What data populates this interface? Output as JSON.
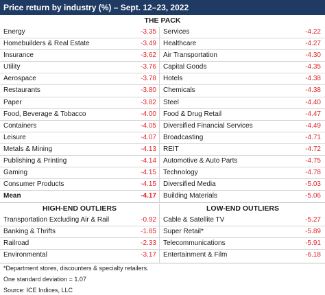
{
  "title": "Price return by industry (%) – Sept. 12–23, 2022",
  "pack": {
    "heading": "THE PACK",
    "left": [
      {
        "name": "Energy",
        "value": "-3.35"
      },
      {
        "name": "Homebuilders & Real Estate",
        "value": "-3.49"
      },
      {
        "name": "Insurance",
        "value": "-3.62"
      },
      {
        "name": "Utility",
        "value": "-3.76"
      },
      {
        "name": "Aerospace",
        "value": "-3.78"
      },
      {
        "name": "Restaurants",
        "value": "-3.80"
      },
      {
        "name": "Paper",
        "value": "-3.82"
      },
      {
        "name": "Food, Beverage & Tobacco",
        "value": "-4.00"
      },
      {
        "name": "Containers",
        "value": "-4.05"
      },
      {
        "name": "Leisure",
        "value": "-4.07"
      },
      {
        "name": "Metals & Mining",
        "value": "-4.13"
      },
      {
        "name": "Publishing & Printing",
        "value": "-4.14"
      },
      {
        "name": "Gaming",
        "value": "-4.15"
      },
      {
        "name": "Consumer Products",
        "value": "-4.15"
      },
      {
        "name": "Mean",
        "value": "-4.17"
      }
    ],
    "right": [
      {
        "name": "Services",
        "value": "-4.22"
      },
      {
        "name": "Healthcare",
        "value": "-4.27"
      },
      {
        "name": "Air Transportation",
        "value": "-4.30"
      },
      {
        "name": "Capital Goods",
        "value": "-4.35"
      },
      {
        "name": "Hotels",
        "value": "-4.38"
      },
      {
        "name": "Chemicals",
        "value": "-4.38"
      },
      {
        "name": "Steel",
        "value": "-4.40"
      },
      {
        "name": "Food & Drug Retail",
        "value": "-4.47"
      },
      {
        "name": "Diversified Financial Services",
        "value": "-4.49"
      },
      {
        "name": "Broadcasting",
        "value": "-4.71"
      },
      {
        "name": "REIT",
        "value": "-4.72"
      },
      {
        "name": "Automotive & Auto Parts",
        "value": "-4.75"
      },
      {
        "name": "Technology",
        "value": "-4.78"
      },
      {
        "name": "Diversified Media",
        "value": "-5.03"
      },
      {
        "name": "Building Materials",
        "value": "-5.06"
      }
    ]
  },
  "high_end": {
    "heading": "HIGH-END OUTLIERS",
    "items": [
      {
        "name": "Transportation Excluding Air & Rail",
        "value": "-0.92"
      },
      {
        "name": "Banking & Thrifts",
        "value": "-1.85"
      },
      {
        "name": "Railroad",
        "value": "-2.33"
      },
      {
        "name": "Environmental",
        "value": "-3.17"
      }
    ]
  },
  "low_end": {
    "heading": "LOW-END OUTLIERS",
    "items": [
      {
        "name": "Cable & Satellite TV",
        "value": "-5.27"
      },
      {
        "name": "Super Retail*",
        "value": "-5.89"
      },
      {
        "name": "Telecommunications",
        "value": "-5.91"
      },
      {
        "name": "Entertainment & Film",
        "value": "-6.18"
      }
    ]
  },
  "notes": {
    "footnote": "*Department stores, discounters & specialty retailers.",
    "std_dev": "One standard deviation = 1.07",
    "source": "Source: ICE Indices, LLC"
  },
  "colors": {
    "header_bg": "#1f3a63",
    "value": "#e3262c",
    "rule": "#d5d5d5"
  }
}
